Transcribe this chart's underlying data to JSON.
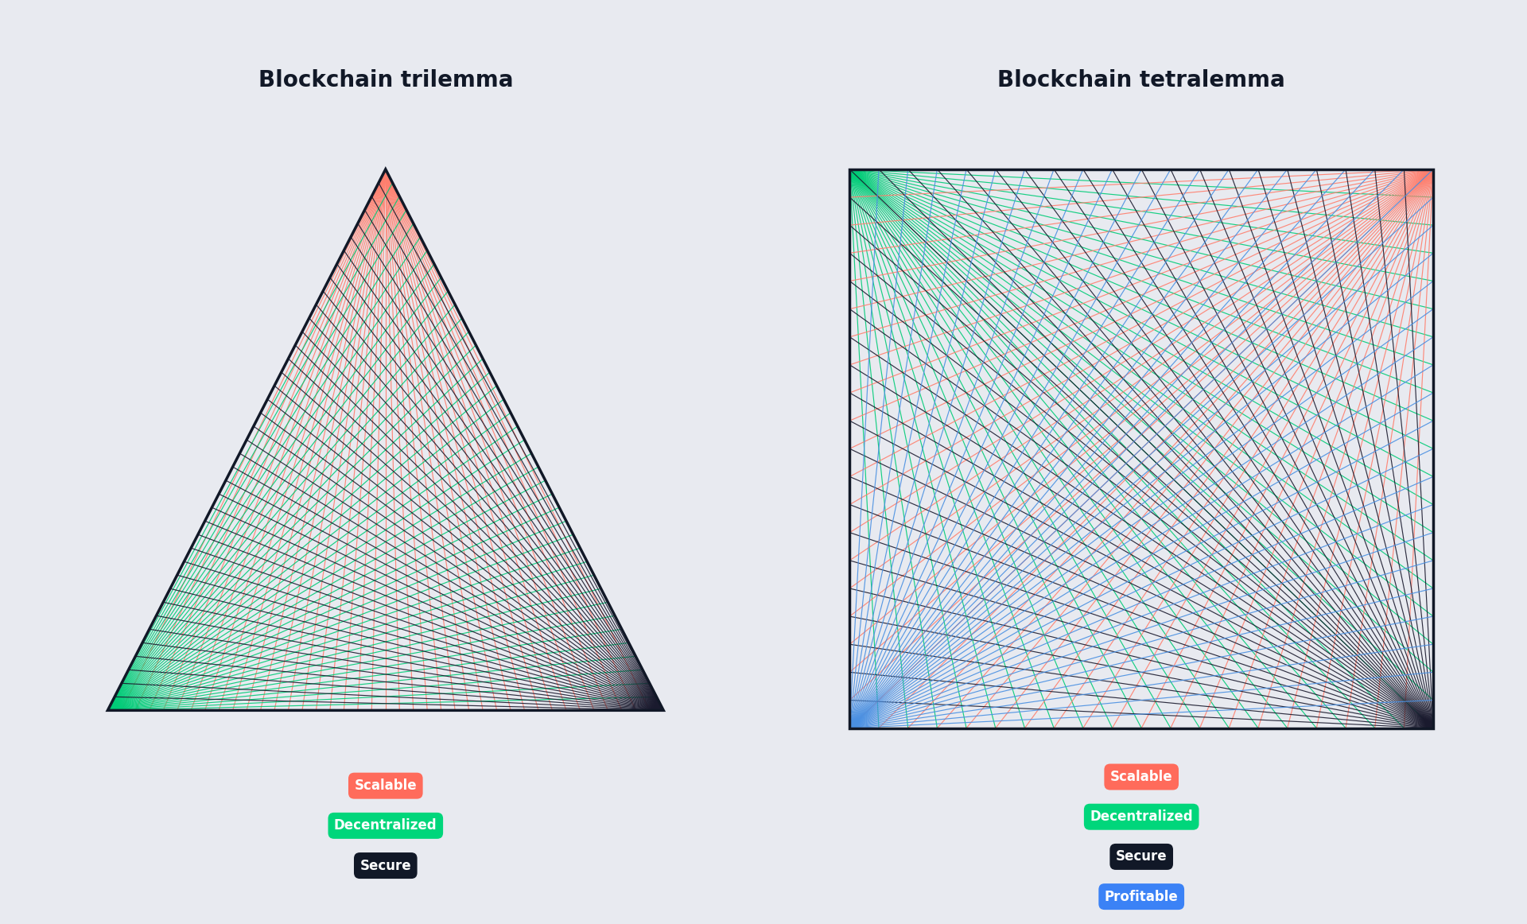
{
  "bg_color": "#E8EAF0",
  "panel_color": "#ECEEF4",
  "title_color": "#111827",
  "title_fontsize": 20,
  "n_lines": 40,
  "line_width": 0.85,
  "trilemma": {
    "title": "Blockchain trilemma",
    "labels": [
      "Scalable",
      "Decentralized",
      "Secure"
    ],
    "label_colors": [
      "#FF6B5B",
      "#00D67B",
      "#111827"
    ],
    "label_text_colors": [
      "#ffffff",
      "#ffffff",
      "#ffffff"
    ]
  },
  "tetralemma": {
    "title": "Blockchain tetralemma",
    "labels": [
      "Scalable",
      "Decentralized",
      "Secure",
      "Profitable"
    ],
    "label_colors": [
      "#FF6B5B",
      "#00D67B",
      "#111827",
      "#3B82F6"
    ],
    "label_text_colors": [
      "#ffffff",
      "#ffffff",
      "#ffffff",
      "#ffffff"
    ]
  },
  "tri_colors": {
    "scalable": "#FF7F6E",
    "decentralized": "#00CC77",
    "secure": "#1a1a2e"
  },
  "tet_colors": {
    "scalable": "#FF7F6E",
    "decentralized": "#00CC77",
    "secure": "#1a1a2e",
    "profitable": "#4A90E2"
  }
}
